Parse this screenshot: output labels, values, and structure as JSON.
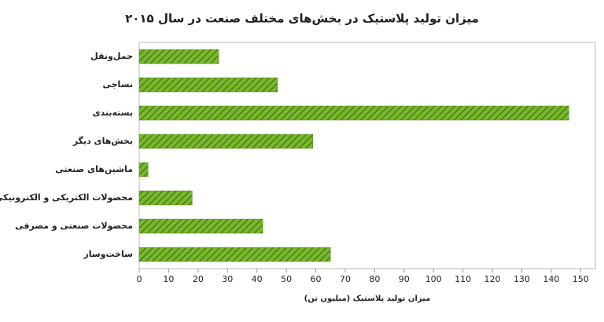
{
  "chart_data": {
    "type": "bar",
    "orientation": "horizontal",
    "title": "میزان تولید پلاستیک در بخش‌های مختلف صنعت در سال ۲۰۱۵",
    "xlabel": "میزان تولید پلاستیک (میلیون تن)",
    "categories": [
      "حمل‌ونقل",
      "نساجی",
      "بسته‌بندی",
      "بخش‌های دیگر",
      "ماشین‌های صنعتی",
      "محصولات الکتریکی و الکترونیکی",
      "محصولات صنعتی و مصرفی",
      "ساخت‌وساز"
    ],
    "values": [
      27,
      47,
      146,
      59,
      3,
      18,
      42,
      65
    ],
    "color": "#76b82a",
    "xlim": [
      0,
      155
    ],
    "xticks": [
      0,
      10,
      20,
      30,
      40,
      50,
      60,
      70,
      80,
      90,
      100,
      110,
      120,
      130,
      140,
      150
    ],
    "grid": false
  }
}
